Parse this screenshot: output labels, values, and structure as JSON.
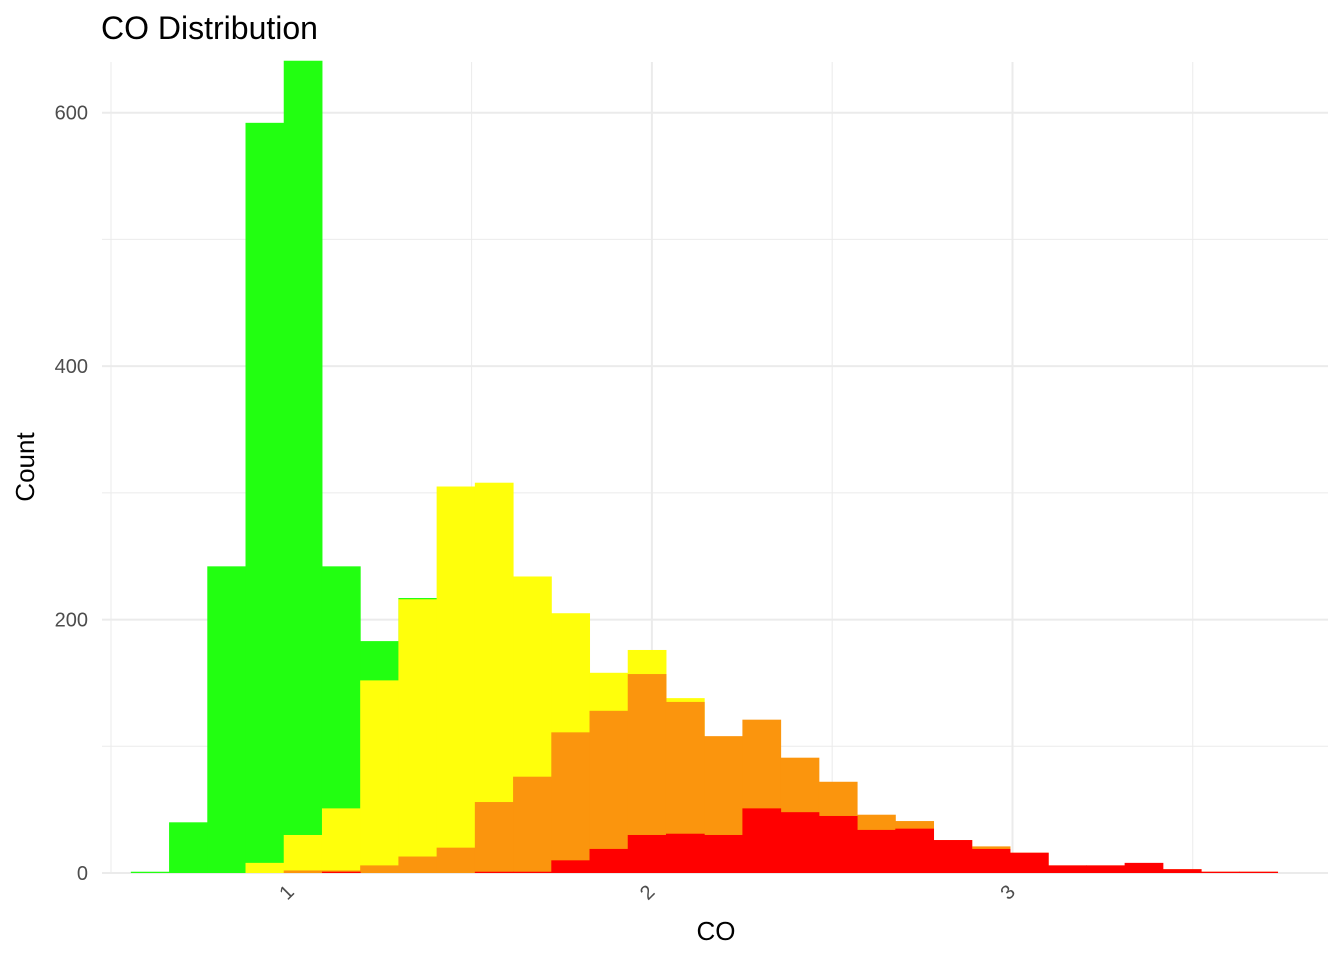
{
  "chart_data": {
    "type": "bar",
    "stacking": "overlaid",
    "title": "CO Distribution",
    "xlabel": "CO",
    "ylabel": "Count",
    "xlim": [
      0.475,
      3.875
    ],
    "ylim": [
      0,
      640
    ],
    "x_ticks": [
      1,
      2,
      3
    ],
    "x_tick_labels": [
      "1",
      "2",
      "3"
    ],
    "y_ticks": [
      0,
      200,
      400,
      600
    ],
    "y_tick_labels": [
      "0",
      "200",
      "400",
      "600"
    ],
    "grid": true,
    "legend": "none",
    "bin_width": 0.106,
    "bin_starts": [
      0.555,
      0.661,
      0.767,
      0.873,
      0.979,
      1.085,
      1.191,
      1.297,
      1.403,
      1.509,
      1.615,
      1.721,
      1.827,
      1.933,
      2.039,
      2.145,
      2.251,
      2.357,
      2.463,
      2.569,
      2.675,
      2.781,
      2.887,
      2.993,
      3.099,
      3.205,
      3.311,
      3.417,
      3.523,
      3.629
    ],
    "series": [
      {
        "color": "#22ff11",
        "values": [
          1,
          40,
          242,
          592,
          641,
          242,
          183,
          217,
          0,
          0,
          0,
          0,
          0,
          0,
          0,
          0,
          0,
          0,
          0,
          0,
          0,
          0,
          0,
          0,
          0,
          0,
          0,
          0,
          0,
          0
        ]
      },
      {
        "color": "#ffff0b",
        "values": [
          0,
          0,
          0,
          8,
          30,
          51,
          152,
          216,
          305,
          308,
          234,
          205,
          158,
          176,
          138,
          0,
          0,
          0,
          0,
          0,
          0,
          0,
          0,
          0,
          0,
          0,
          0,
          0,
          0,
          0
        ]
      },
      {
        "color": "#fb950d",
        "values": [
          0,
          0,
          0,
          0,
          2,
          2,
          6,
          13,
          20,
          56,
          76,
          111,
          128,
          157,
          135,
          108,
          121,
          91,
          72,
          46,
          41,
          26,
          21,
          16,
          6,
          6,
          0,
          3,
          1,
          1
        ]
      },
      {
        "color": "#ff0000",
        "values": [
          0,
          0,
          0,
          0,
          0,
          1,
          0,
          0,
          0,
          1,
          1,
          10,
          19,
          30,
          31,
          30,
          51,
          48,
          45,
          34,
          35,
          26,
          19,
          16,
          6,
          6,
          8,
          3,
          1,
          1
        ]
      }
    ]
  }
}
